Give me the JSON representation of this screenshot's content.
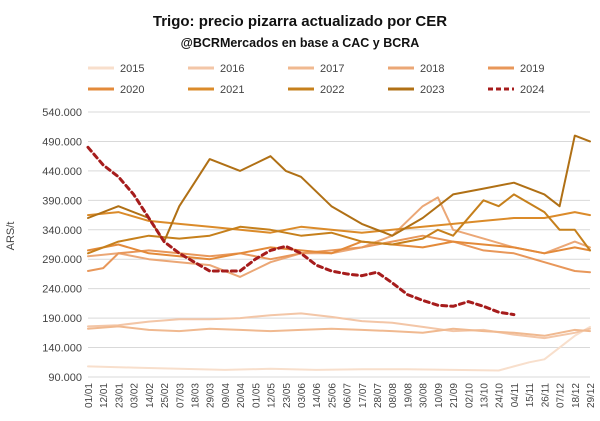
{
  "chart_data": {
    "type": "line",
    "title": "Trigo: precio pizarra actualizado por CER",
    "subtitle": "@BCRMercados en base a CAC y BCRA",
    "xlabel": "",
    "ylabel": "ARS/t",
    "ylim": [
      90000,
      540000
    ],
    "yticks": [
      90000,
      140000,
      190000,
      240000,
      290000,
      340000,
      390000,
      440000,
      490000,
      540000
    ],
    "ytick_labels": [
      "90.000",
      "140.000",
      "190.000",
      "240.000",
      "290.000",
      "340.000",
      "390.000",
      "440.000",
      "490.000",
      "540.000"
    ],
    "x_tick_labels": [
      "01/01",
      "12/01",
      "23/01",
      "03/02",
      "14/02",
      "25/02",
      "07/03",
      "18/03",
      "29/03",
      "09/04",
      "20/04",
      "01/05",
      "12/05",
      "23/05",
      "03/06",
      "14/06",
      "25/06",
      "06/07",
      "17/07",
      "28/07",
      "08/08",
      "19/08",
      "30/08",
      "10/09",
      "21/09",
      "02/10",
      "13/10",
      "24/10",
      "04/11",
      "15/11",
      "26/11",
      "07/12",
      "18/12",
      "29/12"
    ],
    "grid": true,
    "legend_position": "top",
    "series": [
      {
        "name": "2015",
        "color": "#f8dfcc",
        "width": 2,
        "dash": false,
        "points": [
          [
            0,
            108000
          ],
          [
            3,
            106000
          ],
          [
            6,
            104000
          ],
          [
            9,
            102000
          ],
          [
            12,
            104000
          ],
          [
            15,
            102000
          ],
          [
            18,
            103000
          ],
          [
            21,
            103000
          ],
          [
            24,
            102000
          ],
          [
            27,
            101000
          ],
          [
            28,
            108000
          ],
          [
            29,
            115000
          ],
          [
            30,
            120000
          ],
          [
            31,
            140000
          ],
          [
            32,
            160000
          ],
          [
            33,
            175000
          ]
        ]
      },
      {
        "name": "2016",
        "color": "#f3c6a7",
        "width": 2,
        "dash": false,
        "points": [
          [
            0,
            176000
          ],
          [
            2,
            178000
          ],
          [
            4,
            184000
          ],
          [
            6,
            188000
          ],
          [
            8,
            188000
          ],
          [
            10,
            190000
          ],
          [
            12,
            195000
          ],
          [
            14,
            198000
          ],
          [
            16,
            192000
          ],
          [
            18,
            185000
          ],
          [
            20,
            182000
          ],
          [
            22,
            175000
          ],
          [
            24,
            168000
          ],
          [
            26,
            170000
          ],
          [
            28,
            162000
          ],
          [
            30,
            156000
          ],
          [
            32,
            165000
          ],
          [
            33,
            172000
          ]
        ]
      },
      {
        "name": "2017",
        "color": "#f0b990",
        "width": 2,
        "dash": false,
        "points": [
          [
            0,
            172000
          ],
          [
            2,
            176000
          ],
          [
            4,
            170000
          ],
          [
            6,
            168000
          ],
          [
            8,
            172000
          ],
          [
            10,
            170000
          ],
          [
            12,
            168000
          ],
          [
            14,
            170000
          ],
          [
            16,
            172000
          ],
          [
            18,
            170000
          ],
          [
            20,
            168000
          ],
          [
            22,
            165000
          ],
          [
            24,
            172000
          ],
          [
            26,
            168000
          ],
          [
            28,
            165000
          ],
          [
            30,
            160000
          ],
          [
            32,
            170000
          ],
          [
            33,
            168000
          ]
        ]
      },
      {
        "name": "2018",
        "color": "#eba776",
        "width": 2,
        "dash": false,
        "points": [
          [
            0,
            295000
          ],
          [
            2,
            300000
          ],
          [
            4,
            290000
          ],
          [
            6,
            285000
          ],
          [
            8,
            280000
          ],
          [
            10,
            260000
          ],
          [
            12,
            285000
          ],
          [
            14,
            300000
          ],
          [
            16,
            300000
          ],
          [
            18,
            310000
          ],
          [
            20,
            330000
          ],
          [
            22,
            380000
          ],
          [
            23,
            395000
          ],
          [
            24,
            340000
          ],
          [
            26,
            325000
          ],
          [
            28,
            310000
          ],
          [
            30,
            300000
          ],
          [
            32,
            320000
          ],
          [
            33,
            310000
          ]
        ]
      },
      {
        "name": "2019",
        "color": "#e8975a",
        "width": 2,
        "dash": false,
        "points": [
          [
            0,
            270000
          ],
          [
            1,
            275000
          ],
          [
            2,
            300000
          ],
          [
            4,
            305000
          ],
          [
            6,
            300000
          ],
          [
            8,
            295000
          ],
          [
            10,
            300000
          ],
          [
            12,
            290000
          ],
          [
            14,
            300000
          ],
          [
            16,
            305000
          ],
          [
            18,
            310000
          ],
          [
            20,
            320000
          ],
          [
            22,
            330000
          ],
          [
            24,
            320000
          ],
          [
            26,
            305000
          ],
          [
            28,
            300000
          ],
          [
            30,
            285000
          ],
          [
            32,
            270000
          ],
          [
            33,
            268000
          ]
        ]
      },
      {
        "name": "2020",
        "color": "#e38a3a",
        "width": 2,
        "dash": false,
        "points": [
          [
            0,
            305000
          ],
          [
            2,
            315000
          ],
          [
            4,
            300000
          ],
          [
            6,
            295000
          ],
          [
            8,
            290000
          ],
          [
            10,
            300000
          ],
          [
            12,
            310000
          ],
          [
            14,
            305000
          ],
          [
            16,
            300000
          ],
          [
            18,
            320000
          ],
          [
            20,
            315000
          ],
          [
            22,
            310000
          ],
          [
            24,
            320000
          ],
          [
            26,
            315000
          ],
          [
            28,
            310000
          ],
          [
            30,
            300000
          ],
          [
            32,
            310000
          ],
          [
            33,
            305000
          ]
        ]
      },
      {
        "name": "2021",
        "color": "#db8b2a",
        "width": 2,
        "dash": false,
        "points": [
          [
            0,
            365000
          ],
          [
            2,
            370000
          ],
          [
            4,
            355000
          ],
          [
            6,
            350000
          ],
          [
            8,
            345000
          ],
          [
            10,
            340000
          ],
          [
            12,
            335000
          ],
          [
            14,
            345000
          ],
          [
            16,
            340000
          ],
          [
            18,
            335000
          ],
          [
            20,
            340000
          ],
          [
            22,
            345000
          ],
          [
            24,
            350000
          ],
          [
            26,
            355000
          ],
          [
            28,
            360000
          ],
          [
            30,
            360000
          ],
          [
            32,
            370000
          ],
          [
            33,
            365000
          ]
        ]
      },
      {
        "name": "2022",
        "color": "#c6801c",
        "width": 2,
        "dash": false,
        "points": [
          [
            0,
            300000
          ],
          [
            2,
            320000
          ],
          [
            4,
            330000
          ],
          [
            6,
            325000
          ],
          [
            8,
            330000
          ],
          [
            10,
            345000
          ],
          [
            12,
            340000
          ],
          [
            14,
            330000
          ],
          [
            16,
            335000
          ],
          [
            18,
            320000
          ],
          [
            20,
            315000
          ],
          [
            22,
            325000
          ],
          [
            23,
            340000
          ],
          [
            24,
            330000
          ],
          [
            26,
            390000
          ],
          [
            27,
            380000
          ],
          [
            28,
            400000
          ],
          [
            30,
            370000
          ],
          [
            31,
            340000
          ],
          [
            32,
            340000
          ],
          [
            33,
            305000
          ]
        ]
      },
      {
        "name": "2023",
        "color": "#b07015",
        "width": 2,
        "dash": false,
        "points": [
          [
            0,
            360000
          ],
          [
            2,
            380000
          ],
          [
            4,
            360000
          ],
          [
            5,
            320000
          ],
          [
            6,
            380000
          ],
          [
            7,
            420000
          ],
          [
            8,
            460000
          ],
          [
            10,
            440000
          ],
          [
            12,
            465000
          ],
          [
            13,
            440000
          ],
          [
            14,
            430000
          ],
          [
            16,
            380000
          ],
          [
            18,
            350000
          ],
          [
            20,
            330000
          ],
          [
            22,
            360000
          ],
          [
            24,
            400000
          ],
          [
            26,
            410000
          ],
          [
            28,
            420000
          ],
          [
            30,
            400000
          ],
          [
            31,
            380000
          ],
          [
            32,
            500000
          ],
          [
            33,
            490000
          ]
        ]
      },
      {
        "name": "2024",
        "color": "#a61c1c",
        "width": 3,
        "dash": true,
        "points": [
          [
            0,
            480000
          ],
          [
            1,
            450000
          ],
          [
            2,
            430000
          ],
          [
            3,
            400000
          ],
          [
            4,
            360000
          ],
          [
            5,
            320000
          ],
          [
            6,
            300000
          ],
          [
            7,
            285000
          ],
          [
            8,
            270000
          ],
          [
            10,
            270000
          ],
          [
            11,
            290000
          ],
          [
            12,
            305000
          ],
          [
            13,
            312000
          ],
          [
            14,
            300000
          ],
          [
            15,
            280000
          ],
          [
            16,
            270000
          ],
          [
            17,
            265000
          ],
          [
            18,
            262000
          ],
          [
            19,
            268000
          ],
          [
            20,
            250000
          ],
          [
            21,
            230000
          ],
          [
            22,
            220000
          ],
          [
            23,
            212000
          ],
          [
            24,
            210000
          ],
          [
            25,
            218000
          ],
          [
            26,
            210000
          ],
          [
            27,
            200000
          ],
          [
            28,
            196000
          ]
        ]
      }
    ]
  }
}
